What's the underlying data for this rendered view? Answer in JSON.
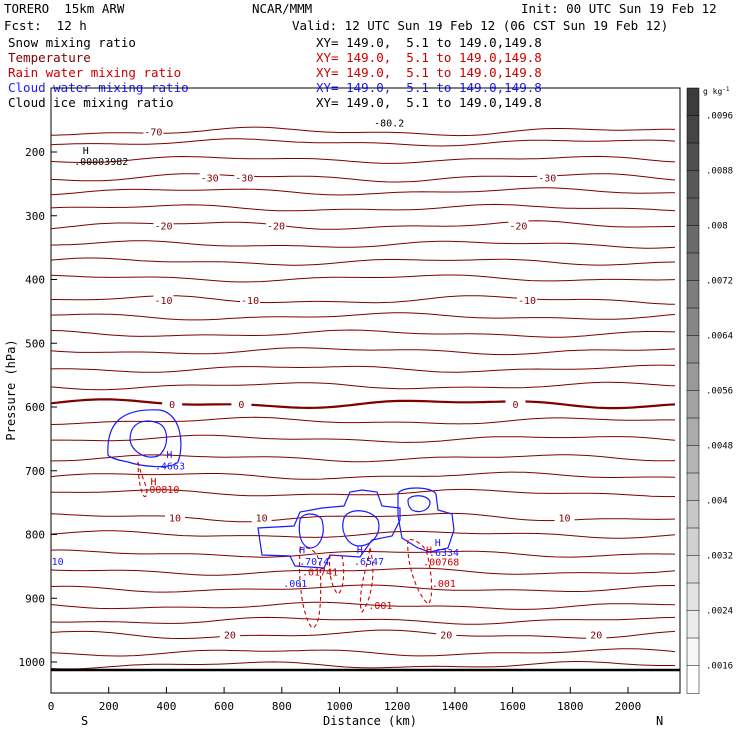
{
  "header": {
    "model": "TORERO  15km ARW",
    "center": "NCAR/MMM",
    "init": "Init: 00 UTC Sun 19 Feb 12",
    "fcst": "Fcst:  12 h",
    "valid": "Valid: 12 UTC Sun 19 Feb 12 (06 CST Sun 19 Feb 12)"
  },
  "legend": [
    {
      "name": "Snow mixing ratio",
      "xy": "XY= 149.0,  5.1 to 149.0,149.8",
      "color": "#000000"
    },
    {
      "name": "Temperature",
      "xy": "XY= 149.0,  5.1 to 149.0,149.8",
      "color": "#800000"
    },
    {
      "name": "Rain water mixing ratio",
      "xy": "XY= 149.0,  5.1 to 149.0,149.8",
      "color": "#cc0000"
    },
    {
      "name": "Cloud water mixing ratio",
      "xy": "XY= 149.0,  5.1 to 149.0,149.8",
      "color": "#1a1aff"
    },
    {
      "name": "Cloud ice mixing ratio",
      "xy": "XY= 149.0,  5.1 to 149.0,149.8",
      "color": "#000000"
    }
  ],
  "chart_data": {
    "type": "cross-section",
    "xlabel": "Distance (km)",
    "ylabel": "Pressure (hPa)",
    "xlim": [
      0,
      2170
    ],
    "ylim": [
      1050,
      150
    ],
    "xticks": [
      "0",
      "200",
      "400",
      "600",
      "800",
      "1000",
      "1200",
      "1400",
      "1600",
      "1800",
      "2000"
    ],
    "yticks": [
      "200",
      "300",
      "400",
      "500",
      "600",
      "700",
      "800",
      "900",
      "1000"
    ],
    "x_end_labels": {
      "left": "S",
      "right": "N"
    },
    "colorbar": {
      "unit": "g kg",
      "unit_exp": "-1",
      "ticks": [
        ".0096",
        ".0088",
        ".008",
        ".0072",
        ".0064",
        ".0056",
        ".0048",
        ".004",
        ".0032",
        ".0024",
        ".0016"
      ],
      "range": [
        0.0012,
        0.01
      ]
    },
    "temperature": {
      "levels": [
        {
          "p": 168,
          "label": "-70",
          "label_x": [
            355
          ]
        },
        {
          "p": 240,
          "label": "-30",
          "label_x": [
            550,
            670,
            1720
          ]
        },
        {
          "p": 315,
          "label": "-20",
          "label_x": [
            390,
            780,
            1620
          ]
        },
        {
          "p": 432,
          "label": "-10",
          "label_x": [
            390,
            690,
            1650
          ]
        },
        {
          "p": 595,
          "label": "0",
          "label_x": [
            420,
            660,
            1610
          ]
        },
        {
          "p": 773,
          "label": "10",
          "label_x": [
            430,
            730,
            1780
          ]
        },
        {
          "p": 957,
          "label": "20",
          "label_x": [
            620,
            1370,
            1890
          ]
        }
      ]
    },
    "annotations": [
      {
        "text": "-80.2",
        "x": 1120,
        "p": 160,
        "color": "#000000"
      },
      {
        "text": "H",
        "x": 110,
        "p": 203,
        "color": "#000000"
      },
      {
        "text": ".00003982",
        "x": 80,
        "p": 220,
        "color": "#000000"
      },
      {
        "text": "H",
        "x": 400,
        "p": 680,
        "color": "#1a1aff"
      },
      {
        "text": ".4663",
        "x": 360,
        "p": 698,
        "color": "#1a1aff"
      },
      {
        "text": "H",
        "x": 345,
        "p": 722,
        "color": "#cc0000"
      },
      {
        "text": ".00810",
        "x": 320,
        "p": 735,
        "color": "#cc0000"
      },
      {
        "text": "H",
        "x": 860,
        "p": 830,
        "color": "#1a1aff"
      },
      {
        "text": ".7074",
        "x": 860,
        "p": 848,
        "color": "#1a1aff"
      },
      {
        "text": "H",
        "x": 1060,
        "p": 830,
        "color": "#1a1aff"
      },
      {
        "text": ".6547",
        "x": 1050,
        "p": 848,
        "color": "#1a1aff"
      },
      {
        "text": "H",
        "x": 1330,
        "p": 818,
        "color": "#1a1aff"
      },
      {
        "text": ".6334",
        "x": 1310,
        "p": 834,
        "color": "#1a1aff"
      },
      {
        "text": "H",
        "x": 1300,
        "p": 830,
        "color": "#cc0000"
      },
      {
        "text": ".00768",
        "x": 1290,
        "p": 849,
        "color": "#cc0000"
      },
      {
        "text": ".01741",
        "x": 870,
        "p": 864,
        "color": "#cc0000"
      },
      {
        "text": ".001",
        "x": 805,
        "p": 882,
        "color": "#1a1aff"
      },
      {
        "text": ".001",
        "x": 1100,
        "p": 917,
        "color": "#cc0000"
      },
      {
        "text": ".001",
        "x": 1320,
        "p": 882,
        "color": "#cc0000"
      },
      {
        "text": "10",
        "x": 2,
        "p": 848,
        "color": "#1a1aff"
      }
    ]
  }
}
